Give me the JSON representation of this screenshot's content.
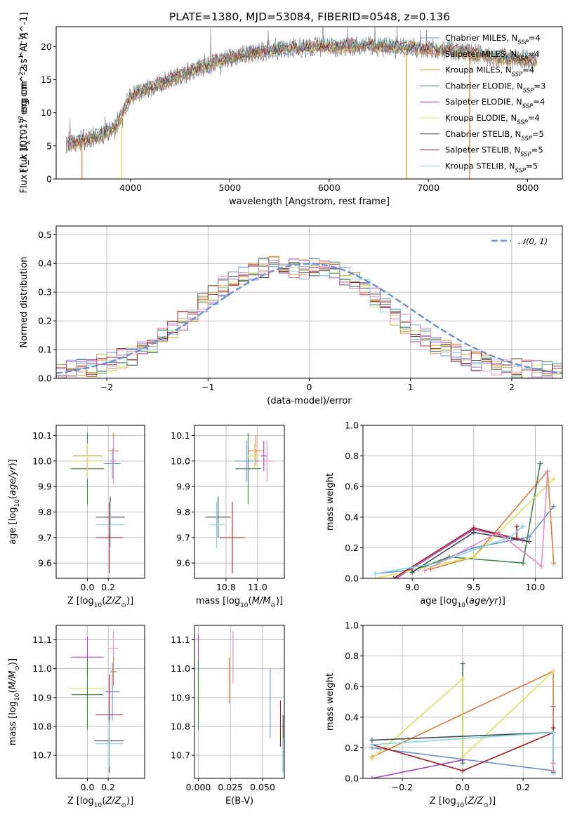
{
  "title": "PLATE=1380, MJD=53084, FIBERID=0548, z=0.136",
  "colors": {
    "chabrier_miles": "#6a8fd8",
    "salpeter_miles": "#e07b39",
    "kroupa_miles": "#c89a2a",
    "chabrier_elodie": "#3f7f4c",
    "salpeter_elodie": "#a43fb8",
    "kroupa_elodie": "#dde25a",
    "chabrier_stelib": "#3c4a4e",
    "salpeter_stelib": "#a8191c",
    "kroupa_stelib": "#7fd7e0",
    "pink": "#e98ac3",
    "data_grey": "#777777"
  },
  "chart_data": [
    {
      "id": "spectrum",
      "type": "line",
      "title": "PLATE=1380, MJD=53084, FIBERID=0548, z=0.136",
      "xlabel": "wavelength [Angstrom, rest frame]",
      "ylabel": "Flux [f_λ 10^-17 erg cm^-2 s^-1 A^-1]",
      "xlim": [
        3250,
        8350
      ],
      "ylim": [
        0,
        23
      ],
      "xticks": [
        4000,
        5000,
        6000,
        7000,
        8000
      ],
      "yticks": [
        0,
        5,
        10,
        15,
        20
      ],
      "legend_position": "right",
      "series": [
        {
          "name": "Chabrier MILES, N_SSP=4",
          "label_main": "Chabrier MILES, N",
          "label_sub": "SSP",
          "label_tail": "=4",
          "color_key": "chabrier_miles"
        },
        {
          "name": "Salpeter MILES, N_SSP=4",
          "label_main": "Salpeter MILES, N",
          "label_sub": "SSP",
          "label_tail": "=4",
          "color_key": "salpeter_miles"
        },
        {
          "name": "Kroupa MILES, N_SSP=4",
          "label_main": "Kroupa MILES, N",
          "label_sub": "SSP",
          "label_tail": "=4",
          "color_key": "kroupa_miles"
        },
        {
          "name": "Chabrier ELODIE, N_SSP=3",
          "label_main": "Chabrier ELODIE, N",
          "label_sub": "SSP",
          "label_tail": "=3",
          "color_key": "chabrier_elodie"
        },
        {
          "name": "Salpeter ELODIE, N_SSP=4",
          "label_main": "Salpeter ELODIE, N",
          "label_sub": "SSP",
          "label_tail": "=4",
          "color_key": "salpeter_elodie"
        },
        {
          "name": "Kroupa ELODIE, N_SSP=4",
          "label_main": "Kroupa ELODIE, N",
          "label_sub": "SSP",
          "label_tail": "=4",
          "color_key": "kroupa_elodie"
        },
        {
          "name": "Chabrier STELIB, N_SSP=5",
          "label_main": "Chabrier STELIB, N",
          "label_sub": "SSP",
          "label_tail": "=5",
          "color_key": "chabrier_stelib"
        },
        {
          "name": "Salpeter STELIB, N_SSP=5",
          "label_main": "Salpeter STELIB, N",
          "label_sub": "SSP",
          "label_tail": "=5",
          "color_key": "salpeter_stelib"
        },
        {
          "name": "Kroupa STELIB, N_SSP=5",
          "label_main": "Kroupa STELIB, N",
          "label_sub": "SSP",
          "label_tail": "=5",
          "color_key": "kroupa_stelib"
        }
      ],
      "envelope": {
        "x": [
          3350,
          3500,
          3700,
          3850,
          3950,
          4000,
          4100,
          4300,
          4500,
          4700,
          4900,
          5100,
          5300,
          5500,
          5700,
          5900,
          6100,
          6300,
          6500,
          6700,
          6900,
          7100,
          7300,
          7500,
          7700,
          7900,
          8100
        ],
        "y": [
          5.3,
          5.8,
          6.6,
          8.0,
          10.8,
          12.3,
          13.3,
          14.4,
          15.6,
          16.7,
          17.9,
          18.6,
          19.2,
          19.6,
          19.8,
          20.0,
          20.0,
          20.1,
          20.0,
          19.9,
          19.8,
          19.6,
          19.3,
          18.8,
          18.4,
          18.1,
          17.9
        ]
      },
      "vertical_drops": [
        {
          "x": 3510,
          "color_key": "salpeter_miles"
        },
        {
          "x": 3910,
          "color_key": "kroupa_elodie"
        },
        {
          "x": 6780,
          "color_key": "kroupa_miles"
        },
        {
          "x": 7415,
          "color_key": "salpeter_miles"
        }
      ]
    },
    {
      "id": "residuals",
      "type": "step",
      "xlabel": "(data-model)/error",
      "ylabel": "Normed distribution",
      "xlim": [
        -2.5,
        2.5
      ],
      "ylim": [
        0,
        0.53
      ],
      "xticks": [
        -2,
        -1,
        0,
        1,
        2
      ],
      "xtick_labels": [
        "−2",
        "−1",
        "0",
        "1",
        "2"
      ],
      "yticks": [
        0.0,
        0.1,
        0.2,
        0.3,
        0.4,
        0.5
      ],
      "ytick_labels": [
        "0.0",
        "0.1",
        "0.2",
        "0.3",
        "0.4",
        "0.5"
      ],
      "grid": true,
      "legend_position": "top-right",
      "legend_label": "𝒩(0, 1)",
      "bins": [
        -2.5,
        2.5,
        50
      ],
      "base": [
        0.02,
        0.03,
        0.035,
        0.04,
        0.05,
        0.06,
        0.07,
        0.08,
        0.1,
        0.12,
        0.14,
        0.17,
        0.2,
        0.23,
        0.26,
        0.29,
        0.32,
        0.34,
        0.36,
        0.375,
        0.385,
        0.39,
        0.39,
        0.385,
        0.38,
        0.385,
        0.39,
        0.38,
        0.36,
        0.34,
        0.31,
        0.28,
        0.25,
        0.22,
        0.19,
        0.16,
        0.14,
        0.12,
        0.1,
        0.085,
        0.07,
        0.06,
        0.05,
        0.045,
        0.04,
        0.035,
        0.03,
        0.028,
        0.026,
        0.025
      ],
      "gaussian": {
        "mean": 0,
        "sigma": 1,
        "color_key": "chabrier_miles"
      }
    },
    {
      "id": "age-vs-Z",
      "type": "errorbar",
      "xlabel": "Z [log10(Z/Z⊙)]",
      "ylabel": "age [log10(age/yr)]",
      "xlim": [
        -0.3,
        0.55
      ],
      "ylim": [
        9.54,
        10.14
      ],
      "xticks": [
        0.0,
        0.2
      ],
      "xtick_labels": [
        "0.0",
        "0.2"
      ],
      "yticks": [
        9.6,
        9.7,
        9.8,
        9.9,
        10.0,
        10.1
      ],
      "ytick_labels": [
        "9.6",
        "9.7",
        "9.8",
        "9.9",
        "10.0",
        "10.1"
      ],
      "grid": true,
      "points": [
        {
          "x": 0.0,
          "y": 10.02,
          "xerr": 0.14,
          "yerr": 0.07,
          "color_key": "kroupa_miles"
        },
        {
          "x": 0.0,
          "y": 10.0,
          "xerr": 0.02,
          "yerr": 0.1,
          "color_key": "salpeter_elodie"
        },
        {
          "x": 0.0,
          "y": 9.97,
          "xerr": 0.16,
          "yerr": 0.14,
          "color_key": "chabrier_elodie"
        },
        {
          "x": 0.0,
          "y": 10.0,
          "xerr": 0.13,
          "yerr": 0.07,
          "color_key": "kroupa_elodie"
        },
        {
          "x": 0.25,
          "y": 10.04,
          "xerr": 0.05,
          "yerr": 0.07,
          "color_key": "salpeter_miles"
        },
        {
          "x": 0.24,
          "y": 9.99,
          "xerr": 0.08,
          "yerr": 0.06,
          "color_key": "chabrier_miles"
        },
        {
          "x": 0.25,
          "y": 10.0,
          "xerr": 0.03,
          "yerr": 0.09,
          "color_key": "pink"
        },
        {
          "x": 0.22,
          "y": 9.78,
          "xerr": 0.14,
          "yerr": 0.08,
          "color_key": "chabrier_stelib"
        },
        {
          "x": 0.22,
          "y": 9.75,
          "xerr": 0.14,
          "yerr": 0.09,
          "color_key": "kroupa_stelib"
        },
        {
          "x": 0.21,
          "y": 9.7,
          "xerr": 0.13,
          "yerr": 0.14,
          "color_key": "salpeter_stelib"
        }
      ]
    },
    {
      "id": "age-vs-mass",
      "type": "errorbar",
      "xlabel": "mass [log10(M/M⊙)]",
      "ylabel": "",
      "xlim": [
        10.6,
        11.17
      ],
      "ylim": [
        9.54,
        10.14
      ],
      "xticks": [
        10.8,
        11.0
      ],
      "xtick_labels": [
        "10.8",
        "11.0"
      ],
      "yticks": [
        9.6,
        9.7,
        9.8,
        9.9,
        10.0,
        10.1
      ],
      "ytick_labels": [
        "9.6",
        "9.7",
        "9.8",
        "9.9",
        "10.0",
        "10.1"
      ],
      "grid": true,
      "points": [
        {
          "x": 10.99,
          "y": 10.04,
          "xerr": 0.05,
          "yerr": 0.06,
          "color_key": "salpeter_miles"
        },
        {
          "x": 10.93,
          "y": 10.0,
          "xerr": 0.08,
          "yerr": 0.08,
          "color_key": "chabrier_miles"
        },
        {
          "x": 10.94,
          "y": 9.97,
          "xerr": 0.08,
          "yerr": 0.14,
          "color_key": "chabrier_elodie"
        },
        {
          "x": 10.98,
          "y": 10.02,
          "xerr": 0.05,
          "yerr": 0.05,
          "color_key": "kroupa_elodie"
        },
        {
          "x": 11.06,
          "y": 10.0,
          "xerr": 0.05,
          "yerr": 0.08,
          "color_key": "pink"
        },
        {
          "x": 11.04,
          "y": 10.02,
          "xerr": 0.02,
          "yerr": 0.06,
          "color_key": "salpeter_elodie"
        },
        {
          "x": 10.75,
          "y": 9.78,
          "xerr": 0.08,
          "yerr": 0.08,
          "color_key": "chabrier_stelib"
        },
        {
          "x": 10.74,
          "y": 9.75,
          "xerr": 0.05,
          "yerr": 0.09,
          "color_key": "kroupa_stelib"
        },
        {
          "x": 10.84,
          "y": 9.7,
          "xerr": 0.08,
          "yerr": 0.14,
          "color_key": "salpeter_stelib"
        }
      ]
    },
    {
      "id": "weight-vs-age",
      "type": "line",
      "xlabel": "age [log10(age/yr)]",
      "ylabel": "mass weight",
      "xlim": [
        8.6,
        10.22
      ],
      "ylim": [
        0.0,
        1.0
      ],
      "xticks": [
        9.0,
        9.5,
        10.0
      ],
      "xtick_labels": [
        "9.0",
        "9.5",
        "10.0"
      ],
      "yticks": [
        0.0,
        0.2,
        0.4,
        0.6,
        0.8,
        1.0
      ],
      "ytick_labels": [
        "0.0",
        "0.2",
        "0.4",
        "0.6",
        "0.8",
        "1.0"
      ],
      "grid": true,
      "series": [
        {
          "color_key": "chabrier_miles",
          "x": [
            8.7,
            9.05,
            9.5,
            9.95,
            10.15
          ],
          "y": [
            0.03,
            0.06,
            0.2,
            0.27,
            0.47
          ]
        },
        {
          "color_key": "salpeter_miles",
          "x": [
            9.15,
            9.5,
            10.1,
            10.15
          ],
          "y": [
            0.06,
            0.14,
            0.7,
            0.1
          ]
        },
        {
          "color_key": "chabrier_elodie",
          "x": [
            9.0,
            9.3,
            9.9,
            10.04
          ],
          "y": [
            0.05,
            0.14,
            0.1,
            0.75
          ]
        },
        {
          "color_key": "salpeter_elodie",
          "x": [
            8.87,
            9.5,
            9.9
          ],
          "y": [
            0.0,
            0.32,
            0.25
          ]
        },
        {
          "color_key": "kroupa_elodie",
          "x": [
            8.7,
            9.5,
            10.15
          ],
          "y": [
            0.0,
            0.14,
            0.65
          ]
        },
        {
          "color_key": "chabrier_stelib",
          "x": [
            9.0,
            9.5,
            9.95
          ],
          "y": [
            0.04,
            0.3,
            0.24
          ]
        },
        {
          "color_key": "salpeter_stelib",
          "x": [
            8.85,
            9.5,
            9.85,
            9.85
          ],
          "y": [
            0.0,
            0.33,
            0.26,
            0.34
          ]
        },
        {
          "color_key": "kroupa_stelib",
          "x": [
            8.7,
            9.2,
            9.8,
            9.9
          ],
          "y": [
            0.03,
            0.1,
            0.27,
            0.34
          ]
        },
        {
          "color_key": "pink",
          "x": [
            9.1,
            9.7,
            10.05,
            10.1
          ],
          "y": [
            0.05,
            0.3,
            0.08,
            0.7
          ]
        }
      ]
    },
    {
      "id": "mass-vs-Z",
      "type": "errorbar",
      "xlabel": "Z [log10(Z/Z⊙)]",
      "ylabel": "mass [log10(M/M⊙)]",
      "xlim": [
        -0.3,
        0.55
      ],
      "ylim": [
        10.62,
        11.15
      ],
      "xticks": [
        0.0,
        0.2
      ],
      "xtick_labels": [
        "0.0",
        "0.2"
      ],
      "yticks": [
        10.7,
        10.8,
        10.9,
        11.0,
        11.1
      ],
      "ytick_labels": [
        "10.7",
        "10.8",
        "10.9",
        "11.0",
        "11.1"
      ],
      "grid": true,
      "points": [
        {
          "x": 0.0,
          "y": 11.04,
          "xerr": 0.16,
          "yerr": 0.07,
          "color_key": "salpeter_elodie"
        },
        {
          "x": 0.0,
          "y": 10.93,
          "xerr": 0.17,
          "yerr": 0.08,
          "color_key": "kroupa_elodie"
        },
        {
          "x": 0.0,
          "y": 10.91,
          "xerr": 0.15,
          "yerr": 0.12,
          "color_key": "chabrier_elodie"
        },
        {
          "x": 0.25,
          "y": 11.07,
          "xerr": 0.05,
          "yerr": 0.06,
          "color_key": "pink"
        },
        {
          "x": 0.25,
          "y": 10.99,
          "xerr": 0.03,
          "yerr": 0.05,
          "color_key": "salpeter_miles"
        },
        {
          "x": 0.24,
          "y": 10.92,
          "xerr": 0.07,
          "yerr": 0.1,
          "color_key": "chabrier_miles"
        },
        {
          "x": 0.21,
          "y": 10.84,
          "xerr": 0.13,
          "yerr": 0.14,
          "color_key": "salpeter_stelib"
        },
        {
          "x": 0.21,
          "y": 10.75,
          "xerr": 0.14,
          "yerr": 0.11,
          "color_key": "chabrier_stelib"
        },
        {
          "x": 0.21,
          "y": 10.74,
          "xerr": 0.13,
          "yerr": 0.08,
          "color_key": "kroupa_stelib"
        }
      ]
    },
    {
      "id": "mass-vs-EBV",
      "type": "errorbar",
      "xlabel": "E(B-V)",
      "ylabel": "",
      "xlim": [
        -0.003,
        0.067
      ],
      "ylim": [
        10.62,
        11.15
      ],
      "xticks": [
        0.0,
        0.025,
        0.05
      ],
      "xtick_labels": [
        "0.000",
        "0.025",
        "0.050"
      ],
      "yticks": [
        10.7,
        10.8,
        10.9,
        11.0,
        11.1
      ],
      "ytick_labels": [
        "10.7",
        "10.8",
        "10.9",
        "11.0",
        "11.1"
      ],
      "grid": true,
      "points": [
        {
          "x": 0.0,
          "y": 11.04,
          "xerr": 0,
          "yerr": 0.08,
          "color_key": "salpeter_elodie"
        },
        {
          "x": 0.0,
          "y": 10.93,
          "xerr": 0,
          "yerr": 0.08,
          "color_key": "kroupa_elodie"
        },
        {
          "x": 0.0,
          "y": 10.91,
          "xerr": 0,
          "yerr": 0.12,
          "color_key": "chabrier_elodie"
        },
        {
          "x": 0.024,
          "y": 10.96,
          "xerr": 0,
          "yerr": 0.08,
          "color_key": "salpeter_miles"
        },
        {
          "x": 0.027,
          "y": 11.04,
          "xerr": 0,
          "yerr": 0.09,
          "color_key": "pink"
        },
        {
          "x": 0.056,
          "y": 10.88,
          "xerr": 0,
          "yerr": 0.12,
          "color_key": "chabrier_miles"
        },
        {
          "x": 0.064,
          "y": 10.81,
          "xerr": 0,
          "yerr": 0.08,
          "color_key": "salpeter_stelib"
        },
        {
          "x": 0.066,
          "y": 10.74,
          "xerr": 0,
          "yerr": 0.1,
          "color_key": "chabrier_stelib"
        },
        {
          "x": 0.066,
          "y": 10.7,
          "xerr": 0,
          "yerr": 0.06,
          "color_key": "kroupa_stelib"
        }
      ]
    },
    {
      "id": "weight-vs-Z",
      "type": "line",
      "xlabel": "Z [log10(Z/Z⊙)]",
      "ylabel": "mass weight",
      "xlim": [
        -0.33,
        0.33
      ],
      "ylim": [
        0.0,
        1.0
      ],
      "xticks": [
        -0.2,
        0.0,
        0.2
      ],
      "xtick_labels": [
        "−0.2",
        "0.0",
        "0.2"
      ],
      "yticks": [
        0.0,
        0.2,
        0.4,
        0.6,
        0.8,
        1.0
      ],
      "ytick_labels": [
        "0.0",
        "0.2",
        "0.4",
        "0.6",
        "0.8",
        "1.0"
      ],
      "grid": true,
      "series": [
        {
          "color_key": "chabrier_miles",
          "x": [
            -0.3,
            0.3,
            0.3
          ],
          "y": [
            0.2,
            0.05,
            0.47
          ]
        },
        {
          "color_key": "salpeter_miles",
          "x": [
            -0.3,
            0.3,
            0.3
          ],
          "y": [
            0.14,
            0.7,
            0.1
          ]
        },
        {
          "color_key": "chabrier_elodie",
          "x": [
            0.0,
            0.0
          ],
          "y": [
            0.1,
            0.75
          ]
        },
        {
          "color_key": "salpeter_elodie",
          "x": [
            -0.3,
            0.0
          ],
          "y": [
            0.0,
            0.12
          ]
        },
        {
          "color_key": "kroupa_elodie",
          "x": [
            -0.3,
            0.0,
            0.0,
            0.3
          ],
          "y": [
            0.13,
            0.65,
            0.14,
            0.7
          ]
        },
        {
          "color_key": "chabrier_stelib",
          "x": [
            -0.3,
            0.3,
            0.3
          ],
          "y": [
            0.25,
            0.3,
            0.04
          ]
        },
        {
          "color_key": "salpeter_stelib",
          "x": [
            -0.3,
            0.0,
            0.3,
            0.3
          ],
          "y": [
            0.22,
            0.05,
            0.3,
            0.33
          ]
        },
        {
          "color_key": "kroupa_stelib",
          "x": [
            -0.3,
            0.3,
            0.3
          ],
          "y": [
            0.22,
            0.3,
            0.03
          ]
        },
        {
          "color_key": "pink",
          "x": [
            0.3,
            0.3
          ],
          "y": [
            0.05,
            0.1
          ]
        }
      ]
    }
  ]
}
